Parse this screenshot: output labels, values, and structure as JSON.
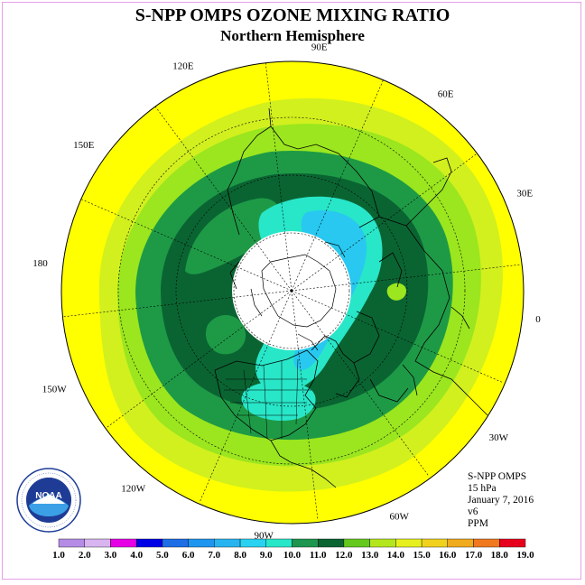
{
  "header": {
    "title": "S-NPP OMPS OZONE MIXING RATIO",
    "subtitle": "Northern Hemisphere"
  },
  "longitude_labels": [
    "90E",
    "60E",
    "30E",
    "0",
    "30W",
    "60W",
    "90W",
    "120W",
    "150W",
    "180",
    "150E",
    "120E"
  ],
  "info": {
    "instrument": "S-NPP OMPS",
    "level": "15 hPa",
    "date": "January 7, 2016",
    "version": "v6",
    "units": "PPM"
  },
  "logo": {
    "text": "NOAA",
    "icon": "noaa-logo-icon"
  },
  "colorbar": {
    "ticks": [
      "1.0",
      "2.0",
      "3.0",
      "4.0",
      "5.0",
      "6.0",
      "7.0",
      "8.0",
      "9.0",
      "10.0",
      "11.0",
      "12.0",
      "13.0",
      "14.0",
      "15.0",
      "16.0",
      "17.0",
      "18.0",
      "19.0"
    ],
    "colors": [
      "#b48ce6",
      "#d8b4f0",
      "#e600e6",
      "#0000e6",
      "#1e6ee6",
      "#1e96f0",
      "#28b4f0",
      "#28d2f0",
      "#28e6c8",
      "#1e9650",
      "#0a6432",
      "#64c81e",
      "#b4e61e",
      "#e6f01e",
      "#f0d21e",
      "#f0aa1e",
      "#f0781e",
      "#e6001e",
      "#8c5a3c"
    ]
  },
  "colors": {
    "yellow": "#ffff00",
    "lime_light": "#d2f01e",
    "lime": "#9be61e",
    "green": "#1e9a46",
    "dark_green": "#0a6432",
    "cyan": "#28e6c8",
    "light_blue": "#28c8f0",
    "polar_night": "#ffffff"
  }
}
